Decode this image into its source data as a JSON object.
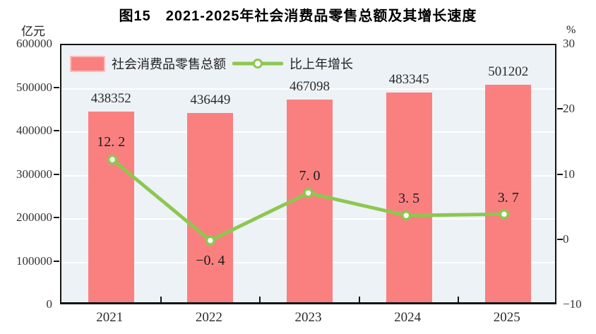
{
  "page": {
    "figure_title": "图15　2021-2025年社会消费品零售总额及其增长速度"
  },
  "chart_data": {
    "type": "bar",
    "subtype": "combo-bar-line-dual-axis",
    "title": "图15　2021-2025年社会消费品零售总额及其增长速度",
    "categories": [
      "2021",
      "2022",
      "2023",
      "2024",
      "2025"
    ],
    "series": [
      {
        "name": "社会消费品零售总额",
        "type": "bar",
        "axis": "left",
        "values": [
          438352,
          436449,
          467098,
          483345,
          501202
        ],
        "labels": [
          "438352",
          "436449",
          "467098",
          "483345",
          "501202"
        ]
      },
      {
        "name": "比上年增长",
        "type": "line",
        "axis": "right",
        "values": [
          12.2,
          -0.4,
          7.0,
          3.5,
          3.7
        ],
        "labels": [
          "12. 2",
          "−0. 4",
          "7. 0",
          "3. 5",
          "3. 7"
        ]
      }
    ],
    "left_axis": {
      "unit": "亿元",
      "min": 0,
      "max": 600000,
      "tick_step": 100000,
      "tick_labels": [
        "0",
        "100000",
        "200000",
        "300000",
        "400000",
        "500000",
        "600000"
      ]
    },
    "right_axis": {
      "unit": "%",
      "min": -10,
      "max": 30,
      "tick_step": 10,
      "tick_labels": [
        "−10",
        "0",
        "10",
        "20",
        "30"
      ]
    },
    "legend": {
      "position": "top-left-inside"
    },
    "grid": "horizontal-white-lines-every-100000",
    "colors": {
      "bar": "#FA8080",
      "bar_swatch_border": "#FCBCBC",
      "line": "#8DC750",
      "marker_fill": "#FFFFFF",
      "plot_bg": "#ECF2F6",
      "grid": "#FFFFFF",
      "axis": "#141414",
      "text": "#222222"
    }
  }
}
